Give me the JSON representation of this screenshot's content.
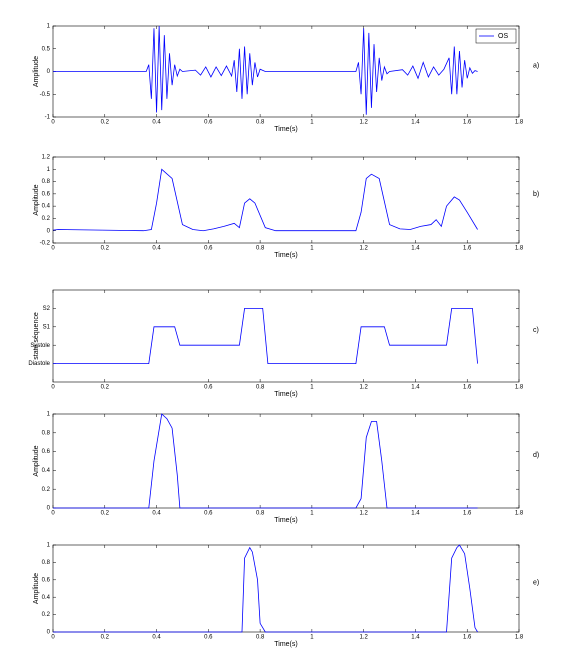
{
  "chart_data": [
    {
      "type": "line",
      "panel": "a)",
      "xlabel": "Time(s)",
      "ylabel": "Amplitude",
      "xlim": [
        0,
        1.8
      ],
      "xticks": [
        0,
        0.2,
        0.4,
        0.6,
        0.8,
        1,
        1.2,
        1.4,
        1.6,
        1.8
      ],
      "ylim": [
        -1,
        1
      ],
      "yticks": [
        -1,
        -0.5,
        0,
        0.5,
        1
      ],
      "legend": "upper right",
      "x": [
        0,
        0.36,
        0.37,
        0.38,
        0.39,
        0.4,
        0.41,
        0.42,
        0.43,
        0.44,
        0.45,
        0.46,
        0.47,
        0.48,
        0.49,
        0.5,
        0.55,
        0.57,
        0.59,
        0.61,
        0.63,
        0.65,
        0.67,
        0.69,
        0.7,
        0.71,
        0.72,
        0.73,
        0.74,
        0.75,
        0.76,
        0.77,
        0.78,
        0.79,
        0.8,
        0.82,
        1.17,
        1.18,
        1.19,
        1.2,
        1.21,
        1.22,
        1.23,
        1.24,
        1.25,
        1.26,
        1.27,
        1.28,
        1.29,
        1.3,
        1.35,
        1.37,
        1.39,
        1.41,
        1.43,
        1.45,
        1.47,
        1.49,
        1.51,
        1.53,
        1.54,
        1.55,
        1.56,
        1.57,
        1.58,
        1.59,
        1.6,
        1.61,
        1.62,
        1.63,
        1.64
      ],
      "series": [
        {
          "name": "OS",
          "color": "#0000ff",
          "values": [
            0,
            0,
            0.15,
            -0.6,
            0.95,
            -0.9,
            1,
            -0.85,
            0.8,
            -0.6,
            0.4,
            -0.3,
            0.15,
            -0.1,
            0.05,
            0,
            0.03,
            -0.08,
            0.1,
            -0.12,
            0.1,
            -0.09,
            0.12,
            -0.1,
            0.25,
            -0.45,
            0.5,
            -0.6,
            0.55,
            -0.5,
            0.4,
            -0.3,
            0.2,
            -0.12,
            0.05,
            0,
            0,
            0.2,
            -0.5,
            0.95,
            -0.95,
            0.85,
            -0.8,
            0.6,
            -0.45,
            0.3,
            -0.2,
            0.1,
            -0.05,
            0,
            0.04,
            -0.08,
            0.12,
            -0.15,
            0.2,
            -0.12,
            0.1,
            -0.08,
            0.05,
            0.3,
            -0.5,
            0.55,
            -0.5,
            0.45,
            -0.35,
            0.25,
            -0.15,
            0.08,
            -0.04,
            0.02,
            0
          ]
        }
      ]
    },
    {
      "type": "line",
      "panel": "b)",
      "xlabel": "Time(s)",
      "ylabel": "Amplitude",
      "xlim": [
        0,
        1.8
      ],
      "xticks": [
        0,
        0.2,
        0.4,
        0.6,
        0.8,
        1,
        1.2,
        1.4,
        1.6,
        1.8
      ],
      "ylim": [
        -0.2,
        1.2
      ],
      "yticks": [
        -0.2,
        0,
        0.2,
        0.4,
        0.6,
        0.8,
        1,
        1.2
      ],
      "x": [
        0,
        0.02,
        0.35,
        0.38,
        0.4,
        0.42,
        0.46,
        0.5,
        0.54,
        0.58,
        0.62,
        0.66,
        0.7,
        0.72,
        0.74,
        0.76,
        0.78,
        0.82,
        0.86,
        1.17,
        1.19,
        1.21,
        1.23,
        1.26,
        1.3,
        1.34,
        1.38,
        1.42,
        1.46,
        1.48,
        1.5,
        1.52,
        1.55,
        1.57,
        1.6,
        1.64
      ],
      "series": [
        {
          "color": "#0000ff",
          "values": [
            0.01,
            0.02,
            0,
            0.02,
            0.45,
            1,
            0.85,
            0.1,
            0.02,
            0,
            0.03,
            0.07,
            0.12,
            0.05,
            0.45,
            0.52,
            0.45,
            0.05,
            0,
            0,
            0.3,
            0.85,
            0.92,
            0.85,
            0.1,
            0.03,
            0.02,
            0.07,
            0.1,
            0.18,
            0.07,
            0.4,
            0.55,
            0.5,
            0.3,
            0.02
          ]
        }
      ]
    },
    {
      "type": "line",
      "panel": "c)",
      "xlabel": "Time(s)",
      "ylabel": "state séquence",
      "xlim": [
        0,
        1.8
      ],
      "xticks": [
        0,
        0.2,
        0.6,
        0.8,
        1,
        1.2,
        1.4,
        1.6,
        1.8
      ],
      "ylim": [
        -1,
        4
      ],
      "yticks": [
        {
          "value": 0,
          "label": "Diastole"
        },
        {
          "value": 1,
          "label": "Systole"
        },
        {
          "value": 2,
          "label": "S1"
        },
        {
          "value": 3,
          "label": "S2"
        }
      ],
      "x": [
        0,
        0.37,
        0.39,
        0.47,
        0.49,
        0.72,
        0.74,
        0.81,
        0.83,
        1.17,
        1.19,
        1.28,
        1.3,
        1.52,
        1.54,
        1.62,
        1.64
      ],
      "series": [
        {
          "color": "#0000ff",
          "values": [
            0,
            0,
            2,
            2,
            1,
            1,
            3,
            3,
            0,
            0,
            2,
            2,
            1,
            1,
            3,
            3,
            0
          ]
        }
      ]
    },
    {
      "type": "line",
      "panel": "d)",
      "xlabel": "Time(s)",
      "ylabel": "Amplitude",
      "xlim": [
        0,
        1.8
      ],
      "xticks": [
        0,
        0.2,
        0.4,
        0.6,
        0.8,
        1,
        1.2,
        1.4,
        1.6,
        1.8
      ],
      "ylim": [
        0,
        1
      ],
      "yticks": [
        0,
        0.2,
        0.4,
        0.6,
        0.8,
        1
      ],
      "x": [
        0,
        0.37,
        0.39,
        0.42,
        0.44,
        0.46,
        0.48,
        0.49,
        1.17,
        1.19,
        1.21,
        1.23,
        1.25,
        1.27,
        1.29,
        1.3,
        1.64
      ],
      "series": [
        {
          "color": "#0000ff",
          "values": [
            0,
            0,
            0.5,
            1,
            0.95,
            0.85,
            0.35,
            0,
            0,
            0.1,
            0.75,
            0.92,
            0.92,
            0.5,
            0,
            0,
            0
          ]
        }
      ]
    },
    {
      "type": "line",
      "panel": "e)",
      "xlabel": "Time(s)",
      "ylabel": "Amplitude",
      "xlim": [
        0,
        1.8
      ],
      "xticks": [
        0,
        0.2,
        0.4,
        0.6,
        0.8,
        1,
        1.2,
        1.4,
        1.6,
        1.8
      ],
      "ylim": [
        0,
        1
      ],
      "yticks": [
        0,
        0.2,
        0.4,
        0.6,
        0.8,
        1
      ],
      "x": [
        0,
        0.73,
        0.74,
        0.76,
        0.77,
        0.79,
        0.8,
        0.82,
        1.52,
        1.54,
        1.56,
        1.57,
        1.59,
        1.61,
        1.63,
        1.64
      ],
      "series": [
        {
          "color": "#0000ff",
          "values": [
            0,
            0,
            0.85,
            0.97,
            0.92,
            0.6,
            0.1,
            0,
            0,
            0.85,
            0.97,
            1,
            0.9,
            0.5,
            0.05,
            0
          ]
        }
      ]
    }
  ]
}
